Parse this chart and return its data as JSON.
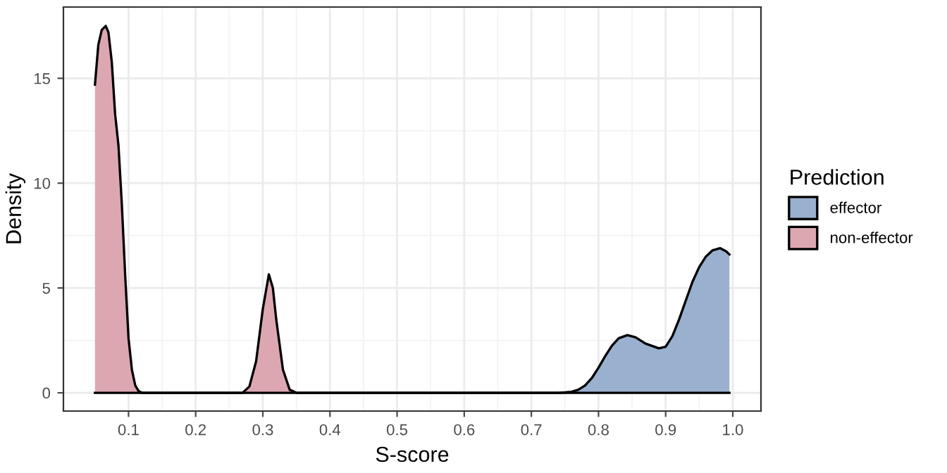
{
  "chart_data": {
    "type": "area",
    "xlabel": "S-score",
    "ylabel": "Density",
    "legend_title": "Prediction",
    "legend": "right",
    "grid": true,
    "xlim": [
      0.003,
      1.042
    ],
    "ylim": [
      -0.87,
      18.4
    ],
    "xticks": [
      {
        "value": 0.1,
        "label": "0.1"
      },
      {
        "value": 0.2,
        "label": "0.2"
      },
      {
        "value": 0.3,
        "label": "0.3"
      },
      {
        "value": 0.4,
        "label": "0.4"
      },
      {
        "value": 0.5,
        "label": "0.5"
      },
      {
        "value": 0.6,
        "label": "0.6"
      },
      {
        "value": 0.7,
        "label": "0.7"
      },
      {
        "value": 0.8,
        "label": "0.8"
      },
      {
        "value": 0.9,
        "label": "0.9"
      },
      {
        "value": 1.0,
        "label": "1.0"
      }
    ],
    "yticks": [
      0,
      5,
      10,
      15
    ],
    "series": [
      {
        "name": "effector",
        "color": "#9ab0cf",
        "x": [
          0.05,
          0.74,
          0.75,
          0.76,
          0.77,
          0.78,
          0.79,
          0.8,
          0.81,
          0.82,
          0.83,
          0.843,
          0.855,
          0.87,
          0.89,
          0.9,
          0.91,
          0.92,
          0.93,
          0.94,
          0.95,
          0.96,
          0.97,
          0.981,
          0.99,
          0.995
        ],
        "values": [
          0,
          0,
          0.02,
          0.05,
          0.15,
          0.35,
          0.7,
          1.2,
          1.75,
          2.25,
          2.6,
          2.75,
          2.65,
          2.35,
          2.12,
          2.2,
          2.7,
          3.5,
          4.4,
          5.3,
          6.0,
          6.5,
          6.8,
          6.9,
          6.75,
          6.6
        ]
      },
      {
        "name": "non-effector",
        "color": "#dda7b1",
        "x": [
          0.05,
          0.055,
          0.06,
          0.066,
          0.07,
          0.075,
          0.08,
          0.085,
          0.09,
          0.095,
          0.1,
          0.105,
          0.11,
          0.115,
          0.12,
          0.27,
          0.28,
          0.29,
          0.3,
          0.309,
          0.315,
          0.32,
          0.33,
          0.34,
          0.35,
          0.995
        ],
        "values": [
          14.7,
          16.6,
          17.3,
          17.5,
          17.2,
          15.8,
          13.3,
          11.8,
          9.0,
          5.6,
          2.6,
          1.1,
          0.35,
          0.08,
          0,
          0,
          0.3,
          1.5,
          4.0,
          5.65,
          5.0,
          3.5,
          1.1,
          0.15,
          0,
          0
        ]
      }
    ]
  }
}
